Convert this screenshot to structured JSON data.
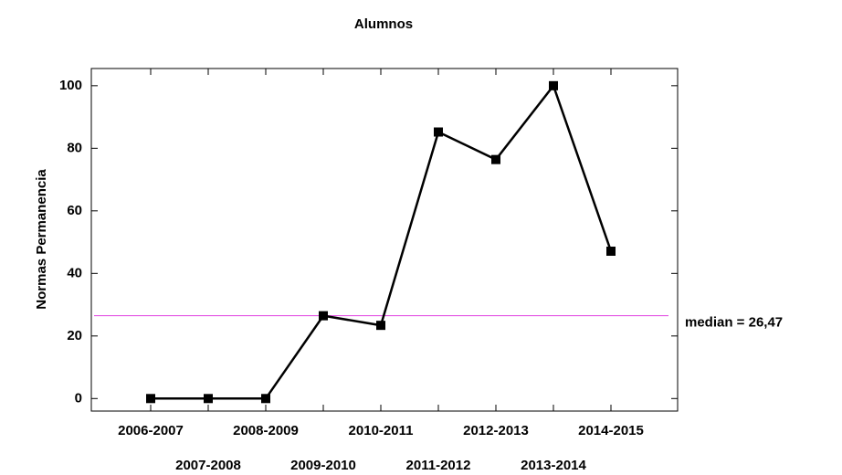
{
  "chart_data": {
    "type": "line",
    "title": "Alumnos",
    "ylabel": "Normas Permanencia",
    "categories": [
      "2006-2007",
      "2007-2008",
      "2008-2009",
      "2009-2010",
      "2010-2011",
      "2011-2012",
      "2012-2013",
      "2013-2014",
      "2014-2015"
    ],
    "series": [
      {
        "name": "Normas Permanencia",
        "color": "#000000",
        "values": [
          0,
          0,
          0,
          26.47,
          23.4,
          85.2,
          76.4,
          100,
          47.1
        ]
      }
    ],
    "median": 26.47,
    "median_color": "#e040e0",
    "annotation": "median = 26,47",
    "ylim": [
      -4,
      105.5
    ],
    "yticks": [
      0,
      20,
      40,
      60,
      80,
      100
    ]
  }
}
